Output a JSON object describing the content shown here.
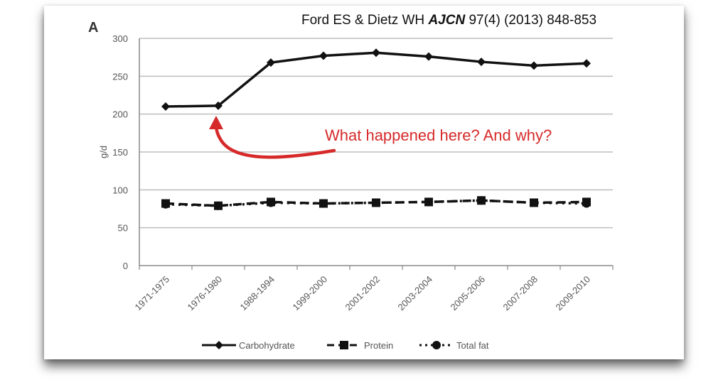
{
  "citation": {
    "authors": "Ford ES & Dietz WH",
    "journal": "AJCN",
    "ref": "97(4) (2013) 848-853"
  },
  "panel_label": "A",
  "annotation": "What happened here? And why?",
  "colors": {
    "annotation": "#d62a2a",
    "series": "#111111",
    "grid": "#bdbdbd"
  },
  "chart_data": {
    "type": "line",
    "categories": [
      "1971-1975",
      "1976-1980",
      "1988-1994",
      "1999-2000",
      "2001-2002",
      "2003-2004",
      "2005-2006",
      "2007-2008",
      "2009-2010"
    ],
    "series": [
      {
        "name": "Carbohydrate",
        "marker": "diamond",
        "style": "solid",
        "values": [
          210,
          211,
          268,
          277,
          281,
          276,
          269,
          264,
          267
        ]
      },
      {
        "name": "Protein",
        "marker": "square",
        "style": "dashed",
        "values": [
          82,
          79,
          84,
          82,
          83,
          84,
          86,
          83,
          84
        ]
      },
      {
        "name": "Total fat",
        "marker": "circle",
        "style": "dotted",
        "values": [
          81,
          79,
          83,
          82,
          83,
          84,
          86,
          83,
          82
        ]
      }
    ],
    "ylabel": "g/d",
    "ylim": [
      0,
      300
    ],
    "yticks": [
      0,
      50,
      100,
      150,
      200,
      250,
      300
    ],
    "grid": true,
    "legend": "bottom"
  }
}
